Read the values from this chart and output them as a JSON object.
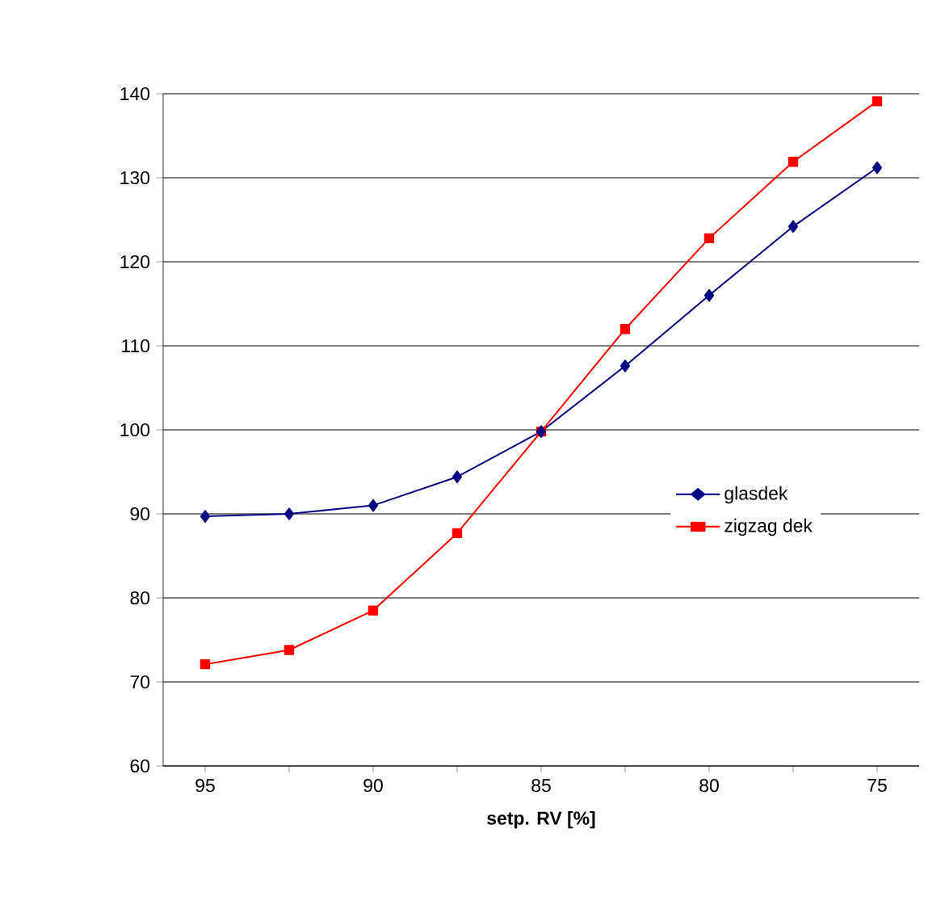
{
  "chart_data": {
    "type": "line",
    "xlabel": "setp. RV [%]",
    "categories": [
      "95",
      null,
      "90",
      null,
      "85",
      null,
      "80",
      null,
      "75"
    ],
    "series": [
      {
        "name": "glasdek",
        "color": "#000080",
        "marker": "diamond",
        "values": [
          89.7,
          90.0,
          91.0,
          94.4,
          99.8,
          107.6,
          116.0,
          124.2,
          131.2
        ]
      },
      {
        "name": "zigzag dek",
        "color": "#ff0000",
        "marker": "square",
        "values": [
          72.1,
          73.8,
          78.5,
          87.7,
          99.8,
          112.0,
          122.8,
          131.9,
          139.1
        ]
      }
    ],
    "ylim": [
      60,
      140
    ],
    "yticks": [
      60,
      70,
      80,
      90,
      100,
      110,
      120,
      130,
      140
    ],
    "grid": "y",
    "legend": "right",
    "line_style": "solid"
  }
}
